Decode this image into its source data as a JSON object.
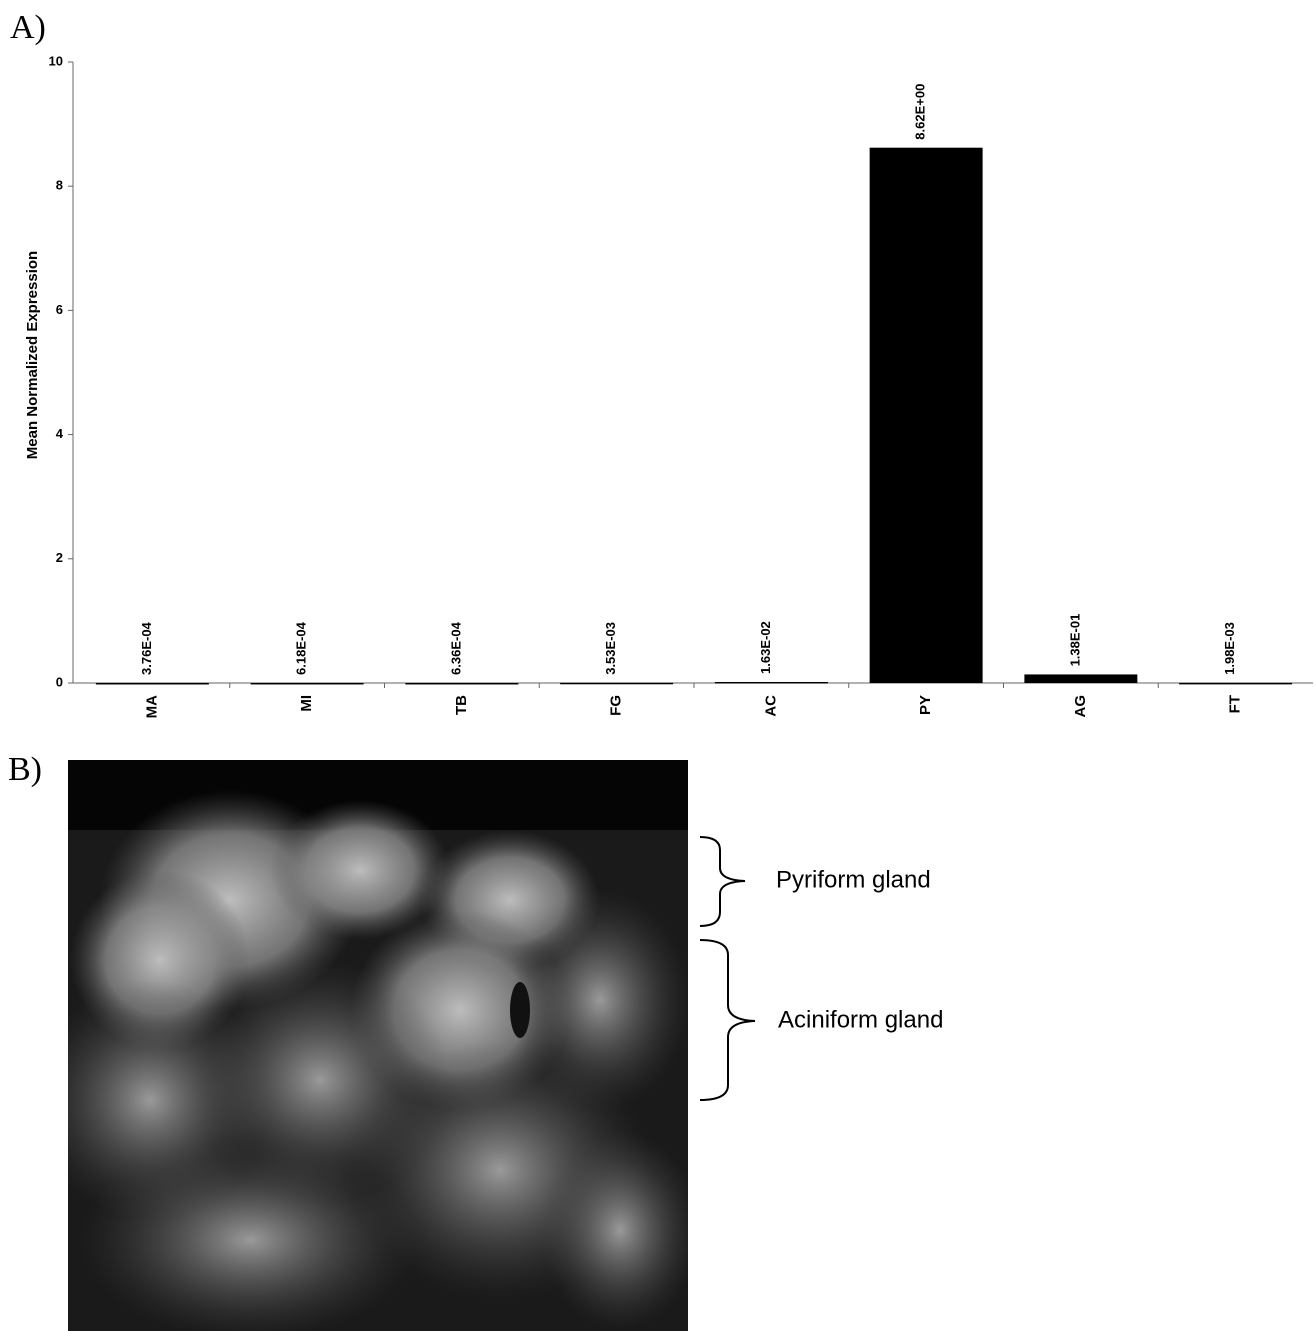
{
  "chart_data": {
    "type": "bar",
    "y_label": "Mean Normalized Expression",
    "categories": [
      "MA",
      "MI",
      "TB",
      "FG",
      "AC",
      "PY",
      "AG",
      "FT"
    ],
    "values": [
      0.000376,
      0.000618,
      0.000636,
      0.00353,
      0.0163,
      8.62,
      0.138,
      0.00198
    ],
    "value_labels": [
      "3.76E-04",
      "6.18E-04",
      "6.36E-04",
      "3.53E-03",
      "1.63E-02",
      "8.62E+00",
      "1.38E-01",
      "1.98E-03"
    ],
    "color": "#000000",
    "ylim": [
      0,
      10
    ],
    "yticks": [
      0,
      2,
      4,
      6,
      8,
      10
    ]
  },
  "figure": {
    "panel_a": "A)",
    "panel_b": "B)",
    "annotations": [
      "Pyriform gland",
      "Aciniform gland"
    ]
  }
}
